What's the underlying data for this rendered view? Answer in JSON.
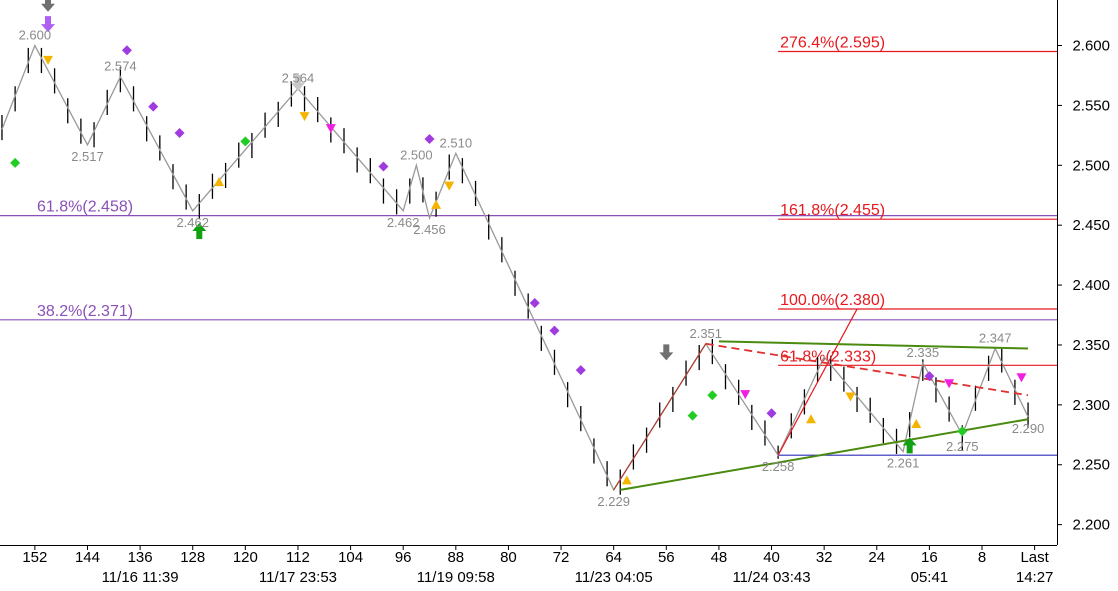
{
  "chart_data": {
    "type": "ohlc",
    "xlim": [
      157.3,
      -3.4
    ],
    "ylim": [
      2.183,
      2.638
    ],
    "xticks": [
      152,
      144,
      136,
      128,
      120,
      112,
      104,
      96,
      88,
      80,
      72,
      64,
      56,
      48,
      40,
      32,
      24,
      16,
      8,
      {
        "value": 0,
        "label": "Last"
      }
    ],
    "time_labels": [
      {
        "value": 136,
        "label": "11/16 11:39"
      },
      {
        "value": 112,
        "label": "11/17 23:53"
      },
      {
        "value": 88,
        "label": "11/19 09:58"
      },
      {
        "value": 64,
        "label": "11/23 04:05"
      },
      {
        "value": 40,
        "label": "11/24 03:43"
      },
      {
        "value": 16,
        "label": "05:41"
      },
      {
        "value": 0,
        "label": "14:27"
      }
    ],
    "yticks": [
      {
        "value": 2.6,
        "label": "2.600"
      },
      {
        "value": 2.55,
        "label": "2.550"
      },
      {
        "value": 2.5,
        "label": "2.500"
      },
      {
        "value": 2.45,
        "label": "2.450"
      },
      {
        "value": 2.4,
        "label": "2.400"
      },
      {
        "value": 2.35,
        "label": "2.350"
      },
      {
        "value": 2.3,
        "label": "2.300"
      },
      {
        "value": 2.25,
        "label": "2.250"
      },
      {
        "value": 2.2,
        "label": "2.200"
      }
    ],
    "bars": {
      "color": "#000000",
      "x": [
        157,
        155,
        153,
        151,
        149,
        147,
        145,
        143,
        141,
        139,
        137,
        135,
        133,
        131,
        129,
        127,
        125,
        123,
        121,
        119,
        117,
        115,
        113,
        111,
        109,
        107,
        105,
        103,
        101,
        99,
        97,
        95,
        93,
        91,
        89,
        87,
        85,
        83,
        81,
        79,
        77,
        75,
        73,
        71,
        69,
        67,
        65,
        63,
        61,
        59,
        57,
        55,
        53,
        51,
        49,
        47,
        45,
        43,
        41,
        39,
        37,
        35,
        33,
        31,
        29,
        27,
        25,
        23,
        21,
        19,
        17,
        15,
        13,
        11,
        9,
        7,
        5,
        3,
        1
      ],
      "high": [
        2.542,
        2.566,
        2.598,
        2.598,
        2.581,
        2.556,
        2.539,
        2.536,
        2.563,
        2.582,
        2.566,
        2.541,
        2.525,
        2.501,
        2.484,
        2.476,
        2.493,
        2.502,
        2.519,
        2.527,
        2.544,
        2.553,
        2.57,
        2.566,
        2.557,
        2.54,
        2.531,
        2.515,
        2.506,
        2.489,
        2.48,
        2.489,
        2.49,
        2.478,
        2.509,
        2.506,
        2.487,
        2.459,
        2.44,
        2.412,
        2.393,
        2.366,
        2.346,
        2.319,
        2.299,
        2.272,
        2.253,
        2.246,
        2.267,
        2.281,
        2.302,
        2.315,
        2.337,
        2.35,
        2.355,
        2.334,
        2.321,
        2.3,
        2.287,
        2.266,
        2.293,
        2.313,
        2.34,
        2.341,
        2.332,
        2.315,
        2.306,
        2.289,
        2.28,
        2.294,
        2.338,
        2.323,
        2.307,
        2.283,
        2.316,
        2.341,
        2.348,
        2.321,
        2.302
      ],
      "low": [
        2.521,
        2.545,
        2.577,
        2.577,
        2.56,
        2.535,
        2.518,
        2.515,
        2.542,
        2.561,
        2.545,
        2.52,
        2.504,
        2.48,
        2.463,
        2.455,
        2.472,
        2.481,
        2.498,
        2.506,
        2.523,
        2.532,
        2.549,
        2.545,
        2.536,
        2.519,
        2.51,
        2.494,
        2.485,
        2.468,
        2.459,
        2.468,
        2.469,
        2.457,
        2.488,
        2.485,
        2.466,
        2.438,
        2.419,
        2.391,
        2.372,
        2.345,
        2.325,
        2.298,
        2.278,
        2.251,
        2.232,
        2.225,
        2.246,
        2.26,
        2.281,
        2.294,
        2.316,
        2.329,
        2.334,
        2.313,
        2.3,
        2.279,
        2.266,
        2.255,
        2.272,
        2.292,
        2.319,
        2.32,
        2.311,
        2.294,
        2.285,
        2.268,
        2.259,
        2.273,
        2.32,
        2.302,
        2.286,
        2.262,
        2.295,
        2.32,
        2.327,
        2.3,
        2.281
      ]
    },
    "zigzag": {
      "color": "#999999",
      "x": [
        157,
        152,
        144,
        139,
        128,
        112,
        96,
        94,
        92,
        88,
        64,
        50,
        39,
        32,
        20,
        17,
        11,
        6,
        1
      ],
      "values": [
        2.53,
        2.6,
        2.517,
        2.574,
        2.462,
        2.564,
        2.462,
        2.5,
        2.456,
        2.51,
        2.229,
        2.351,
        2.258,
        2.34,
        2.261,
        2.335,
        2.275,
        2.347,
        2.29
      ],
      "value_labels": [
        null,
        "2.600",
        "2.517",
        "2.574",
        "2.462",
        "2.564",
        "2.462",
        "2.500",
        "2.456",
        "2.510",
        "2.229",
        "2.351",
        "2.258",
        null,
        "2.261",
        "2.335",
        "2.275",
        "2.347",
        "2.290"
      ]
    },
    "levels": [
      {
        "label": "276.4%(2.595)",
        "value": 2.595,
        "color": "#e8181e",
        "from": 39
      },
      {
        "label": "61.8%(2.458)",
        "value": 2.458,
        "color": "#8a50b8",
        "from": 157.3
      },
      {
        "label": "161.8%(2.455)",
        "value": 2.455,
        "color": "#e8181e",
        "from": 39
      },
      {
        "label": "100.0%(2.380)",
        "value": 2.38,
        "color": "#e8181e",
        "from": 39
      },
      {
        "label": "38.2%(2.371)",
        "value": 2.371,
        "color": "#8a50b8",
        "from": 157.3
      },
      {
        "label": "61.8%(2.333)",
        "value": 2.333,
        "color": "#e8181e",
        "from": 39
      },
      {
        "value": 2.258,
        "color": "#2b2bb8",
        "from": 39
      }
    ],
    "trendlines": [
      {
        "x": [
          64,
          50
        ],
        "y": [
          2.229,
          2.351
        ],
        "color": "#b03a2e",
        "width": 1.2,
        "dash": false
      },
      {
        "x": [
          39,
          27
        ],
        "y": [
          2.258,
          2.38
        ],
        "color": "#e8181e",
        "width": 1.2,
        "dash": false
      },
      {
        "x": [
          50,
          1
        ],
        "y": [
          2.351,
          2.308
        ],
        "color": "#e03030",
        "width": 1.8,
        "dash": true
      },
      {
        "x": [
          48,
          1
        ],
        "y": [
          2.353,
          2.347
        ],
        "color": "#4a8a10",
        "width": 2,
        "dash": false
      },
      {
        "x": [
          63,
          1
        ],
        "y": [
          2.229,
          2.288
        ],
        "color": "#4a8a10",
        "width": 2,
        "dash": false
      }
    ],
    "markers": [
      {
        "x": 138,
        "y": 2.596,
        "shape": "diamond",
        "color": "#a03be0"
      },
      {
        "x": 134,
        "y": 2.549,
        "shape": "diamond",
        "color": "#a03be0"
      },
      {
        "x": 130,
        "y": 2.527,
        "shape": "diamond",
        "color": "#a03be0"
      },
      {
        "x": 99,
        "y": 2.499,
        "shape": "diamond",
        "color": "#a03be0"
      },
      {
        "x": 92,
        "y": 2.522,
        "shape": "diamond",
        "color": "#a03be0"
      },
      {
        "x": 76,
        "y": 2.385,
        "shape": "diamond",
        "color": "#a03be0"
      },
      {
        "x": 73,
        "y": 2.362,
        "shape": "diamond",
        "color": "#a03be0"
      },
      {
        "x": 69,
        "y": 2.329,
        "shape": "diamond",
        "color": "#a03be0"
      },
      {
        "x": 40,
        "y": 2.293,
        "shape": "diamond",
        "color": "#a03be0"
      },
      {
        "x": 16,
        "y": 2.324,
        "shape": "diamond",
        "color": "#a03be0"
      },
      {
        "x": 155,
        "y": 2.502,
        "shape": "diamond",
        "color": "#22cc22"
      },
      {
        "x": 120,
        "y": 2.52,
        "shape": "diamond",
        "color": "#22cc22"
      },
      {
        "x": 52,
        "y": 2.291,
        "shape": "diamond",
        "color": "#22cc22"
      },
      {
        "x": 49,
        "y": 2.308,
        "shape": "diamond",
        "color": "#22cc22"
      },
      {
        "x": 11,
        "y": 2.278,
        "shape": "diamond",
        "color": "#22cc22"
      },
      {
        "x": 150,
        "y": 2.588,
        "shape": "tri-down",
        "color": "#f5b400"
      },
      {
        "x": 111,
        "y": 2.541,
        "shape": "tri-down",
        "color": "#f5b400"
      },
      {
        "x": 89,
        "y": 2.483,
        "shape": "tri-down",
        "color": "#f5b400"
      },
      {
        "x": 28,
        "y": 2.307,
        "shape": "tri-down",
        "color": "#f5b400"
      },
      {
        "x": 124,
        "y": 2.486,
        "shape": "tri-up",
        "color": "#f5b400"
      },
      {
        "x": 91,
        "y": 2.467,
        "shape": "tri-up",
        "color": "#f5b400"
      },
      {
        "x": 62,
        "y": 2.237,
        "shape": "tri-up",
        "color": "#f5b400"
      },
      {
        "x": 34,
        "y": 2.288,
        "shape": "tri-up",
        "color": "#f5b400"
      },
      {
        "x": 18,
        "y": 2.284,
        "shape": "tri-up",
        "color": "#f5b400"
      },
      {
        "x": 107,
        "y": 2.531,
        "shape": "tri-down",
        "color": "#f020e0"
      },
      {
        "x": 44,
        "y": 2.309,
        "shape": "tri-down",
        "color": "#f020e0"
      },
      {
        "x": 13,
        "y": 2.318,
        "shape": "tri-down",
        "color": "#f020e0"
      },
      {
        "x": 2,
        "y": 2.323,
        "shape": "tri-down",
        "color": "#f020e0"
      },
      {
        "x": 150,
        "y": 2.634,
        "shape": "arrow-down",
        "color": "#707070"
      },
      {
        "x": 150,
        "y": 2.617,
        "shape": "arrow-down",
        "color": "#b060f0"
      },
      {
        "x": 112,
        "y": 2.568,
        "shape": "arrow-down",
        "color": "#c8c8c8"
      },
      {
        "x": 56,
        "y": 2.343,
        "shape": "arrow-down",
        "color": "#707070"
      },
      {
        "x": 127,
        "y": 2.446,
        "shape": "arrow-up",
        "color": "#10a010"
      },
      {
        "x": 19,
        "y": 2.267,
        "shape": "arrow-up",
        "color": "#10a010"
      }
    ]
  }
}
